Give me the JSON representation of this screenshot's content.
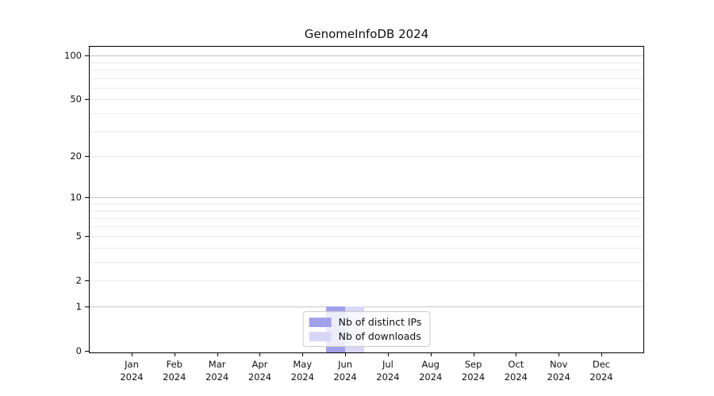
{
  "chart_data": {
    "type": "bar",
    "title": "GenomeInfoDB 2024",
    "categories": [
      {
        "month": "Jan",
        "year": "2024"
      },
      {
        "month": "Feb",
        "year": "2024"
      },
      {
        "month": "Mar",
        "year": "2024"
      },
      {
        "month": "Apr",
        "year": "2024"
      },
      {
        "month": "May",
        "year": "2024"
      },
      {
        "month": "Jun",
        "year": "2024"
      },
      {
        "month": "Jul",
        "year": "2024"
      },
      {
        "month": "Aug",
        "year": "2024"
      },
      {
        "month": "Sep",
        "year": "2024"
      },
      {
        "month": "Oct",
        "year": "2024"
      },
      {
        "month": "Nov",
        "year": "2024"
      },
      {
        "month": "Dec",
        "year": "2024"
      }
    ],
    "series": [
      {
        "id": "distinct-ips",
        "name": "Nb of distinct IPs",
        "color": "#a2a2ea",
        "values": [
          0,
          0,
          0,
          0,
          0,
          1,
          0,
          0,
          0,
          0,
          0,
          0
        ]
      },
      {
        "id": "downloads",
        "name": "Nb of downloads",
        "color": "#d8d8f6",
        "values": [
          0,
          0,
          0,
          0,
          0,
          1,
          0,
          0,
          0,
          0,
          0,
          0
        ]
      }
    ],
    "y_axis": {
      "scale": "log1p",
      "ylim": [
        0,
        115
      ],
      "ticks": [
        {
          "value": 0,
          "label": "0"
        },
        {
          "value": 1,
          "label": "1"
        },
        {
          "value": 2,
          "label": "2"
        },
        {
          "value": 5,
          "label": "5"
        },
        {
          "value": 10,
          "label": "10"
        },
        {
          "value": 20,
          "label": "20"
        },
        {
          "value": 50,
          "label": "50"
        },
        {
          "value": 100,
          "label": "100"
        }
      ],
      "major_gridlines": [
        1,
        10,
        100
      ],
      "minor_gridlines": [
        2,
        3,
        4,
        5,
        6,
        7,
        8,
        9,
        20,
        30,
        40,
        50,
        60,
        70,
        80,
        90
      ]
    },
    "colors": {
      "grid_major": "#c6c6c6",
      "grid_minor": "#eaeaea",
      "axis": "#000000"
    },
    "legend": {
      "position": "bottom-center",
      "entries": [
        "Nb of distinct IPs",
        "Nb of downloads"
      ]
    }
  }
}
